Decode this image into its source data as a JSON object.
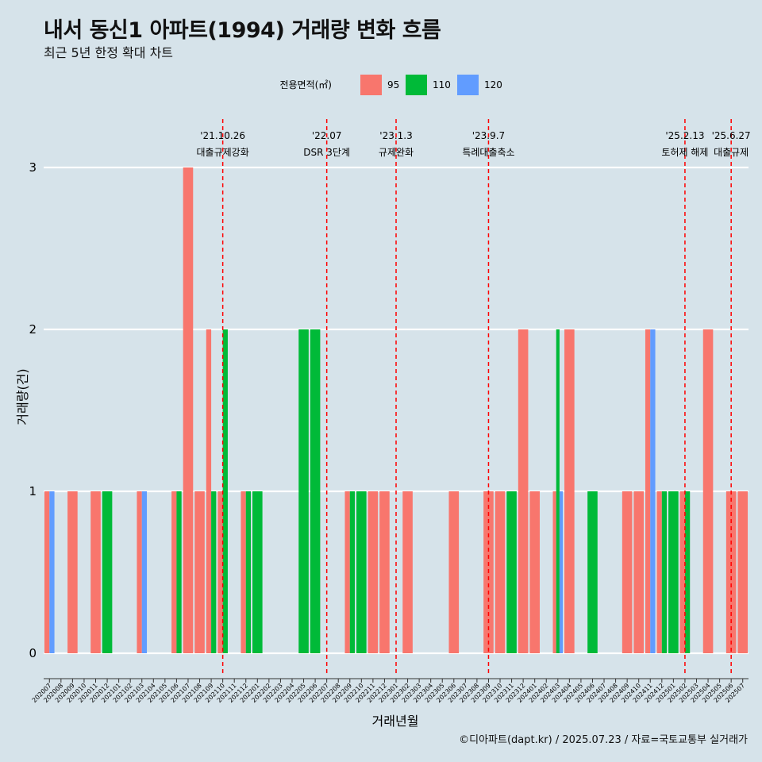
{
  "title": "내서 동신1 아파트(1994) 거래량 변화 흐름",
  "subtitle": "최근 5년 한정 확대 차트",
  "footer": "©디아파트(dapt.kr) / 2025.07.23 / 자료=국토교통부 실거래가",
  "chart_data": {
    "type": "bar",
    "xlabel": "거래년월",
    "ylabel": "거래량(건)",
    "ylim": [
      0,
      3
    ],
    "yticks": [
      0,
      1,
      2,
      3
    ],
    "grid": true,
    "legend": {
      "title": "전용면적(㎡)",
      "position": "top",
      "entries": [
        {
          "name": "95",
          "color": "#f8766d"
        },
        {
          "name": "110",
          "color": "#00ba38"
        },
        {
          "name": "120",
          "color": "#619cff"
        }
      ]
    },
    "categories": [
      "202007",
      "202008",
      "202009",
      "202010",
      "202011",
      "202012",
      "202101",
      "202102",
      "202103",
      "202104",
      "202105",
      "202106",
      "202107",
      "202108",
      "202109",
      "202110",
      "202111",
      "202112",
      "202201",
      "202202",
      "202203",
      "202204",
      "202205",
      "202206",
      "202207",
      "202208",
      "202209",
      "202210",
      "202211",
      "202212",
      "202301",
      "202302",
      "202303",
      "202304",
      "202305",
      "202306",
      "202307",
      "202308",
      "202309",
      "202310",
      "202311",
      "202312",
      "202401",
      "202402",
      "202403",
      "202404",
      "202405",
      "202406",
      "202407",
      "202408",
      "202409",
      "202410",
      "202411",
      "202412",
      "202501",
      "202502",
      "202503",
      "202504",
      "202505",
      "202506",
      "202507"
    ],
    "series": [
      {
        "name": "95",
        "color": "#f8766d",
        "values": [
          1,
          0,
          1,
          0,
          1,
          0,
          0,
          0,
          1,
          0,
          0,
          1,
          3,
          1,
          2,
          1,
          0,
          1,
          0,
          0,
          0,
          0,
          0,
          0,
          0,
          0,
          1,
          0,
          1,
          1,
          0,
          1,
          0,
          0,
          0,
          1,
          0,
          0,
          1,
          1,
          0,
          2,
          1,
          0,
          1,
          2,
          0,
          0,
          0,
          0,
          1,
          1,
          2,
          1,
          0,
          1,
          0,
          2,
          0,
          1,
          1
        ]
      },
      {
        "name": "110",
        "color": "#00ba38",
        "values": [
          0,
          0,
          0,
          0,
          0,
          1,
          0,
          0,
          0,
          0,
          0,
          1,
          0,
          0,
          1,
          2,
          0,
          1,
          1,
          0,
          0,
          0,
          2,
          2,
          0,
          0,
          1,
          1,
          0,
          0,
          0,
          0,
          0,
          0,
          0,
          0,
          0,
          0,
          0,
          0,
          1,
          0,
          0,
          0,
          2,
          0,
          0,
          1,
          0,
          0,
          0,
          0,
          0,
          1,
          1,
          1,
          0,
          0,
          0,
          0,
          0
        ]
      },
      {
        "name": "120",
        "color": "#619cff",
        "values": [
          1,
          0,
          0,
          0,
          0,
          0,
          0,
          0,
          1,
          0,
          0,
          0,
          0,
          0,
          0,
          0,
          0,
          0,
          0,
          0,
          0,
          0,
          0,
          0,
          0,
          0,
          0,
          0,
          0,
          0,
          0,
          0,
          0,
          0,
          0,
          0,
          0,
          0,
          0,
          0,
          0,
          0,
          0,
          0,
          1,
          0,
          0,
          0,
          0,
          0,
          0,
          0,
          2,
          0,
          0,
          0,
          0,
          0,
          0,
          0,
          0
        ]
      }
    ],
    "annotations": [
      {
        "category": "202110",
        "date": "'21.10.26",
        "label": "대출규제강화"
      },
      {
        "category": "202207",
        "date": "'22.07",
        "label": "DSR 3단계"
      },
      {
        "category": "202301",
        "date": "'23.1.3",
        "label": "규제완화"
      },
      {
        "category": "202309",
        "date": "'23.9.7",
        "label": "특례대출축소"
      },
      {
        "category": "202502",
        "date": "'25.2.13",
        "label": "토허제 해제"
      },
      {
        "category": "202506",
        "date": "'25.6.27",
        "label": "대출규제"
      }
    ]
  }
}
